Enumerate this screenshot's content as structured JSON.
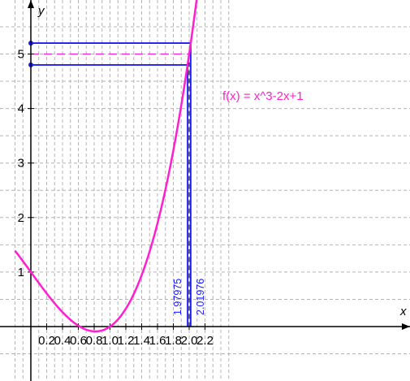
{
  "chart_data": {
    "type": "line",
    "title": "",
    "xlabel": "x",
    "ylabel": "y",
    "xlim": [
      -0.2,
      2.55
    ],
    "ylim": [
      -0.95,
      5.95
    ],
    "grid": true,
    "x_ticks": [
      "0.2",
      "0.4",
      "0.6",
      "0.8",
      "1.0",
      "1.2",
      "1.4",
      "1.6",
      "1.8",
      "2.0",
      "2.2"
    ],
    "y_ticks": [
      "1",
      "2",
      "3",
      "4",
      "5"
    ],
    "series": [
      {
        "name": "f(x) = x^3-2x+1",
        "expression": "x^3-2x+1",
        "color": "#ff1fd0",
        "x": [
          -0.2,
          0.0,
          0.2,
          0.4,
          0.6,
          0.8,
          1.0,
          1.2,
          1.4,
          1.6,
          1.8,
          2.0,
          2.2
        ],
        "y": [
          1.392,
          1.0,
          0.608,
          0.264,
          0.016,
          -0.088,
          0.0,
          0.328,
          0.944,
          1.896,
          3.232,
          5.0,
          7.248
        ]
      }
    ],
    "horizontal_lines": [
      {
        "y": 5.2,
        "color": "#1a1aff",
        "style": "solid"
      },
      {
        "y": 5.0,
        "color": "#ff1fd0",
        "style": "dashed"
      },
      {
        "y": 4.8,
        "color": "#1a1aff",
        "style": "solid"
      }
    ],
    "vertical_lines": [
      {
        "x": 1.97975,
        "label": "1.97975",
        "color": "#1a1aff",
        "style": "solid"
      },
      {
        "x": 2.0,
        "color": "#000000",
        "style": "dashed"
      },
      {
        "x": 2.01976,
        "label": "2.01976",
        "color": "#1a1aff",
        "style": "solid"
      }
    ],
    "points": [
      {
        "x": 0,
        "y": 5.2
      },
      {
        "x": 0,
        "y": 4.8
      }
    ]
  },
  "colors": {
    "grid": "#b4b4b4",
    "axis": "#000000",
    "function": "#ff1fd0",
    "guide": "#1a1aff"
  }
}
